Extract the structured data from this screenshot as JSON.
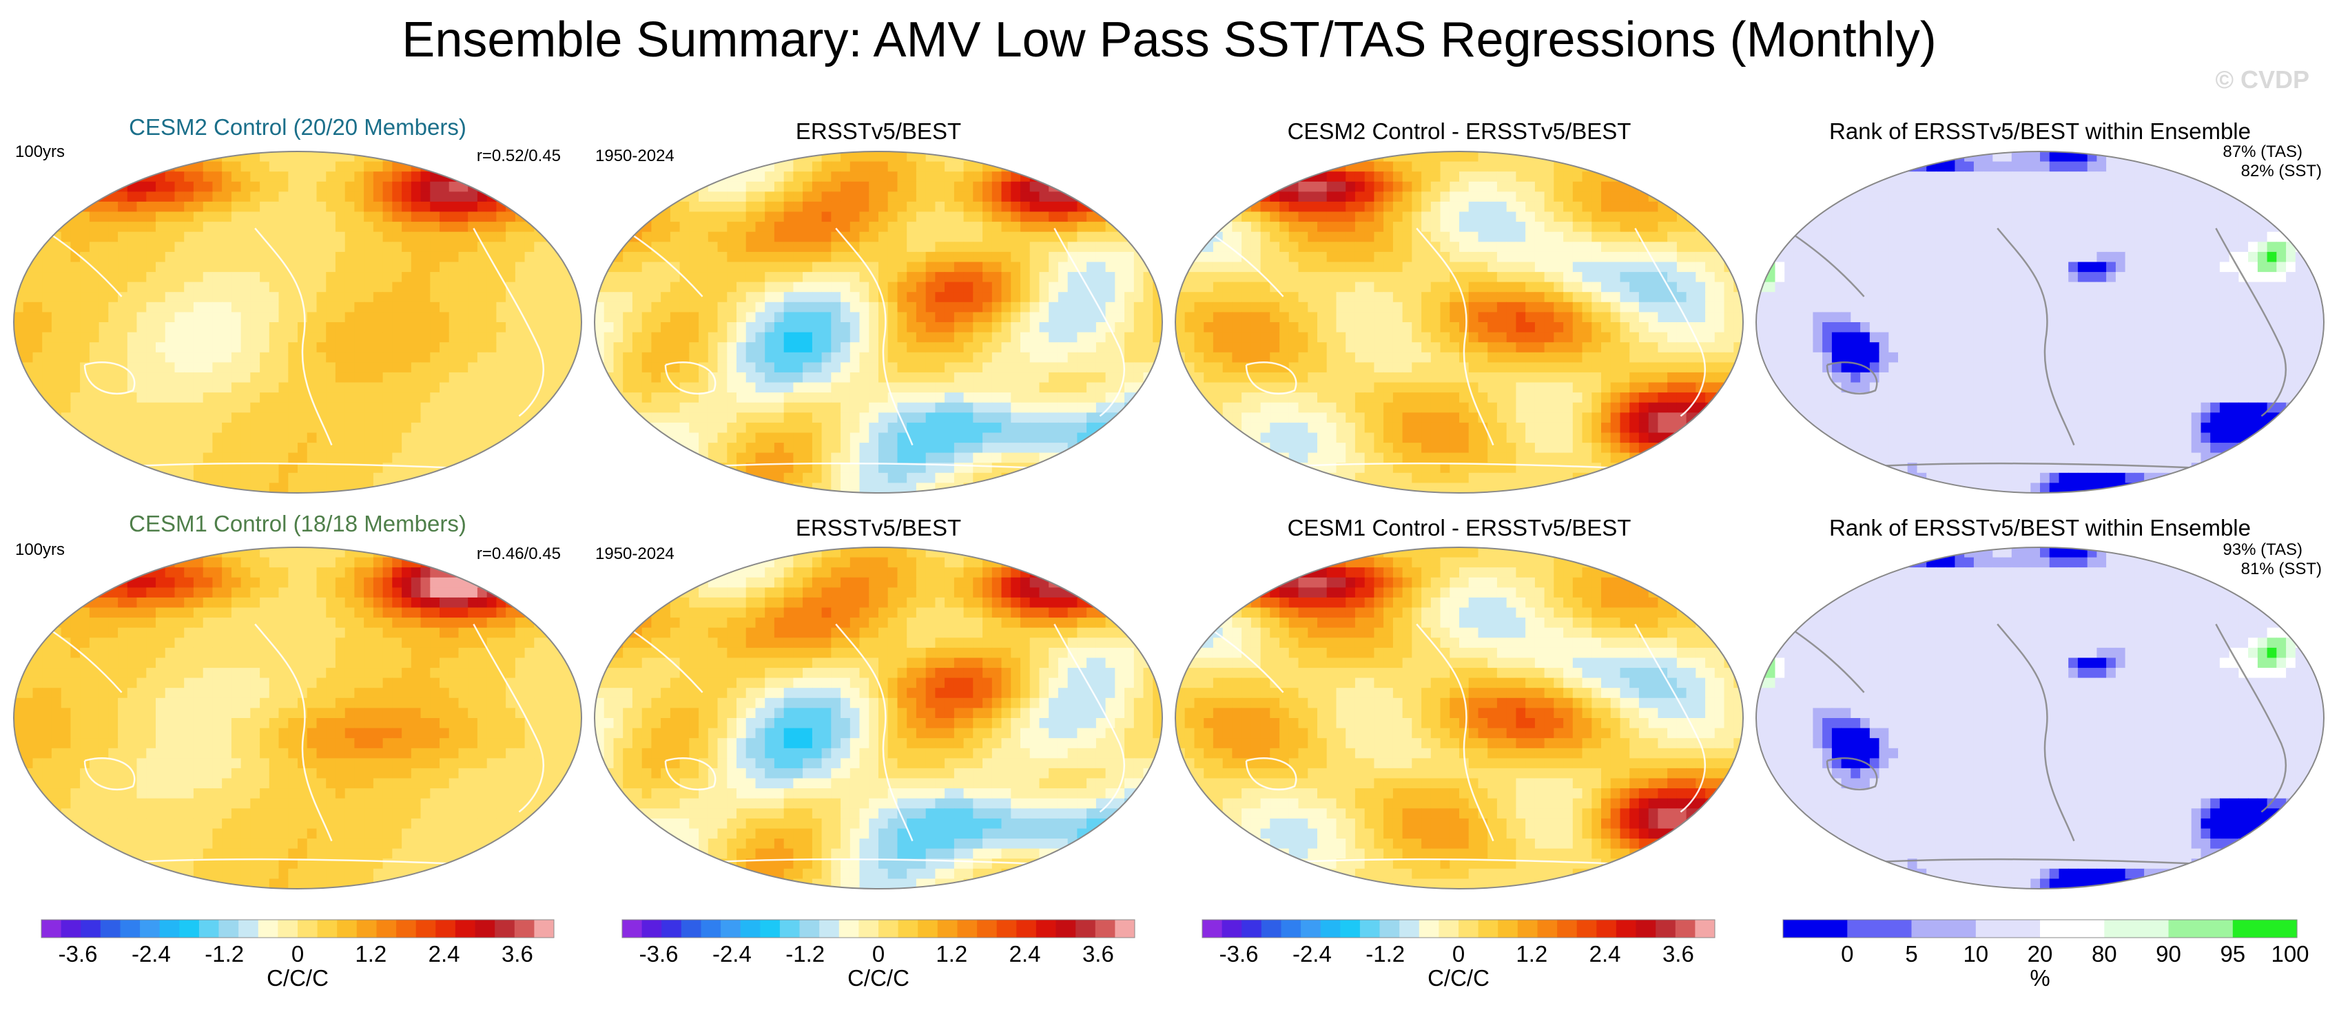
{
  "title": "Ensemble Summary: AMV Low Pass SST/TAS Regressions (Monthly)",
  "watermark": "© CVDP",
  "rows": [
    {
      "model_label": "CESM2 Control (20/20 Members)",
      "model_color": "#1b6f8a",
      "period_model": "100yrs",
      "correlation": "r=0.52/0.45",
      "obs_title": "ERSSTv5/BEST",
      "period_obs": "1950-2024",
      "diff_title": "CESM2 Control - ERSSTv5/BEST",
      "rank_title": "Rank of ERSSTv5/BEST within Ensemble",
      "rank_tas": "87% (TAS)",
      "rank_sst": "82% (SST)"
    },
    {
      "model_label": "CESM1 Control (18/18 Members)",
      "model_color": "#4f7f4a",
      "period_model": "100yrs",
      "correlation": "r=0.46/0.45",
      "obs_title": "ERSSTv5/BEST",
      "period_obs": "1950-2024",
      "diff_title": "CESM1 Control - ERSSTv5/BEST",
      "rank_title": "Rank of ERSSTv5/BEST within Ensemble",
      "rank_tas": "93% (TAS)",
      "rank_sst": "81% (SST)"
    }
  ],
  "colorbar_regression": {
    "unit_label": "C/C/C",
    "tick_labels": [
      "-3.6",
      "-2.4",
      "-1.2",
      "0",
      "1.2",
      "2.4",
      "3.6"
    ],
    "levels": [
      -4.2,
      -3.9,
      -3.6,
      -3.3,
      -3.0,
      -2.7,
      -2.4,
      -2.1,
      -1.8,
      -1.5,
      -1.2,
      -0.9,
      -0.6,
      -0.3,
      0,
      0.3,
      0.6,
      0.9,
      1.2,
      1.5,
      1.8,
      2.1,
      2.4,
      2.7,
      3.0,
      3.3,
      3.6,
      3.9,
      4.2
    ],
    "colors": [
      "#8a2be2",
      "#5a1ee0",
      "#3a32e6",
      "#2e5fe8",
      "#2f7ff0",
      "#3b9cf5",
      "#22b6f7",
      "#1cc8f7",
      "#62d2f4",
      "#9cd8ef",
      "#c8e8f4",
      "#fffbd0",
      "#fff1a6",
      "#ffe270",
      "#fdd245",
      "#fbbe2a",
      "#f9a21b",
      "#f78612",
      "#f3690c",
      "#ee4a07",
      "#e72e07",
      "#d8120a",
      "#c50d12",
      "#bd2e34",
      "#d45a5a",
      "#f3a7a7"
    ]
  },
  "colorbar_rank": {
    "unit_label": "%",
    "tick_labels": [
      "0",
      "5",
      "10",
      "20",
      "80",
      "90",
      "95",
      "100"
    ],
    "tick_values": [
      0,
      5,
      10,
      20,
      80,
      90,
      95,
      100
    ],
    "colors": [
      "#0000ee",
      "#6464f5",
      "#b0b0f7",
      "#e1e1fb",
      "#ffffff",
      "#e0fde0",
      "#9ef59e",
      "#22ee22"
    ]
  },
  "chart_data": [
    {
      "type": "heatmap",
      "title": "CESM2 Control (20/20 Members)",
      "subtitle": "100yrs",
      "annotation": "r=0.52/0.45",
      "colorbar": "colorbar_regression",
      "pattern": "model",
      "row": 0
    },
    {
      "type": "heatmap",
      "title": "ERSSTv5/BEST",
      "subtitle": "1950-2024",
      "colorbar": "colorbar_regression",
      "pattern": "obs",
      "row": 0
    },
    {
      "type": "heatmap",
      "title": "CESM2 Control - ERSSTv5/BEST",
      "colorbar": "colorbar_regression",
      "pattern": "diff",
      "row": 0
    },
    {
      "type": "heatmap",
      "title": "Rank of ERSSTv5/BEST within Ensemble",
      "annotation": "87% (TAS) / 82% (SST)",
      "colorbar": "colorbar_rank",
      "pattern": "rank",
      "row": 0
    },
    {
      "type": "heatmap",
      "title": "CESM1 Control (18/18 Members)",
      "subtitle": "100yrs",
      "annotation": "r=0.46/0.45",
      "colorbar": "colorbar_regression",
      "pattern": "model",
      "row": 1
    },
    {
      "type": "heatmap",
      "title": "ERSSTv5/BEST",
      "subtitle": "1950-2024",
      "colorbar": "colorbar_regression",
      "pattern": "obs",
      "row": 1
    },
    {
      "type": "heatmap",
      "title": "CESM1 Control - ERSSTv5/BEST",
      "colorbar": "colorbar_regression",
      "pattern": "diff",
      "row": 1
    },
    {
      "type": "heatmap",
      "title": "Rank of ERSSTv5/BEST within Ensemble",
      "annotation": "93% (TAS) / 81% (SST)",
      "colorbar": "colorbar_rank",
      "pattern": "rank",
      "row": 1
    }
  ]
}
